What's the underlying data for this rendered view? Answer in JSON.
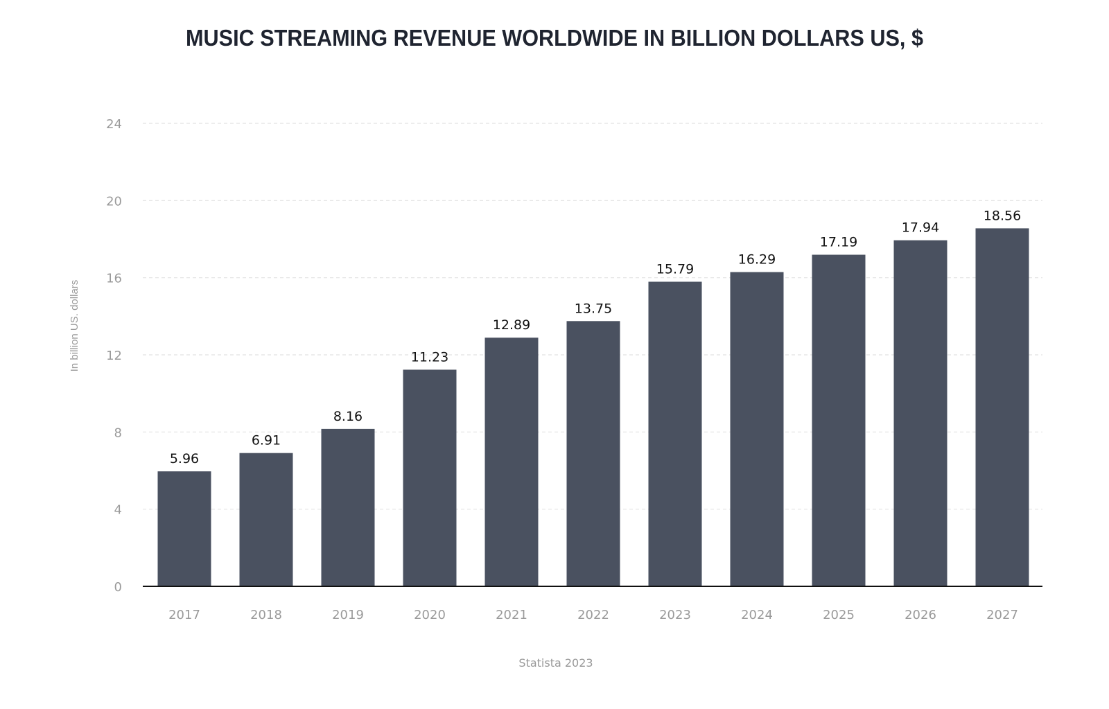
{
  "chart_data": {
    "type": "bar",
    "title": "MUSIC STREAMING REVENUE WORLDWIDE IN BILLION DOLLARS US, $",
    "xlabel": "",
    "ylabel": "In billion US. dollars",
    "categories": [
      "2017",
      "2018",
      "2019",
      "2020",
      "2021",
      "2022",
      "2023",
      "2024",
      "2025",
      "2026",
      "2027"
    ],
    "values": [
      5.96,
      6.91,
      8.16,
      11.23,
      12.89,
      13.75,
      15.79,
      16.29,
      17.19,
      17.94,
      18.56
    ],
    "value_labels": [
      "5.96",
      "6.91",
      "8.16",
      "11.23",
      "12.89",
      "13.75",
      "15.79",
      "16.29",
      "17.19",
      "17.94",
      "18.56"
    ],
    "ylim": [
      0,
      24
    ],
    "yticks": [
      "0",
      "4",
      "8",
      "12",
      "16",
      "20",
      "24"
    ],
    "grid": true,
    "bar_color": "#4a5160",
    "source": "Statista 2023"
  }
}
